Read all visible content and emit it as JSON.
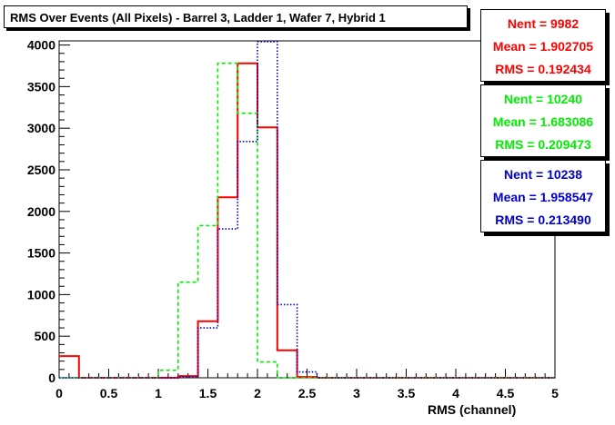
{
  "chart_data": {
    "type": "histogram",
    "title": "RMS Over Events (All Pixels) - Barrel 3, Ladder 1, Wafer 7, Hybrid 1",
    "xlabel": "RMS (channel)",
    "ylabel": "",
    "xlim": [
      0,
      5
    ],
    "ylim": [
      0,
      4050
    ],
    "x_ticks": [
      "0",
      "0.5",
      "1",
      "1.5",
      "2",
      "2.5",
      "3",
      "3.5",
      "4",
      "4.5",
      "5"
    ],
    "y_ticks": [
      "0",
      "500",
      "1000",
      "1500",
      "2000",
      "2500",
      "3000",
      "3500",
      "4000"
    ],
    "bin_edges": [
      0,
      0.2,
      0.4,
      0.6,
      0.8,
      1.0,
      1.2,
      1.4,
      1.6,
      1.8,
      2.0,
      2.2,
      2.4,
      2.6,
      2.8,
      3.0,
      3.2,
      3.4,
      3.6,
      3.8,
      4.0,
      4.2,
      4.4,
      4.6,
      4.8,
      5.0
    ],
    "series": [
      {
        "color": "#ff0000",
        "style": "solid",
        "values": [
          260,
          0,
          0,
          0,
          0,
          0,
          20,
          680,
          2170,
          3780,
          3010,
          330,
          10,
          0,
          0,
          0,
          0,
          0,
          0,
          0,
          0,
          0,
          0,
          0,
          0
        ]
      },
      {
        "color": "#00ee00",
        "style": "dashed",
        "values": [
          0,
          0,
          0,
          0,
          0,
          90,
          1150,
          1830,
          3780,
          3180,
          190,
          0,
          0,
          0,
          0,
          0,
          0,
          0,
          0,
          0,
          0,
          0,
          0,
          0,
          0
        ]
      },
      {
        "color": "#0000cc",
        "style": "dotted",
        "values": [
          0,
          0,
          0,
          0,
          0,
          0,
          10,
          600,
          1790,
          2840,
          4040,
          880,
          70,
          0,
          0,
          0,
          0,
          0,
          0,
          0,
          0,
          0,
          0,
          0,
          0
        ]
      }
    ],
    "stats": [
      {
        "color": "#ff0000",
        "nent": "Nent = 9982",
        "mean": "Mean = 1.902705",
        "rms": "RMS = 0.192434"
      },
      {
        "color": "#00ee00",
        "nent": "Nent = 10240",
        "mean": "Mean = 1.683086",
        "rms": "RMS = 0.209473"
      },
      {
        "color": "#0000cc",
        "nent": "Nent = 10238",
        "mean": "Mean = 1.958547",
        "rms": "RMS = 0.213490"
      }
    ]
  }
}
